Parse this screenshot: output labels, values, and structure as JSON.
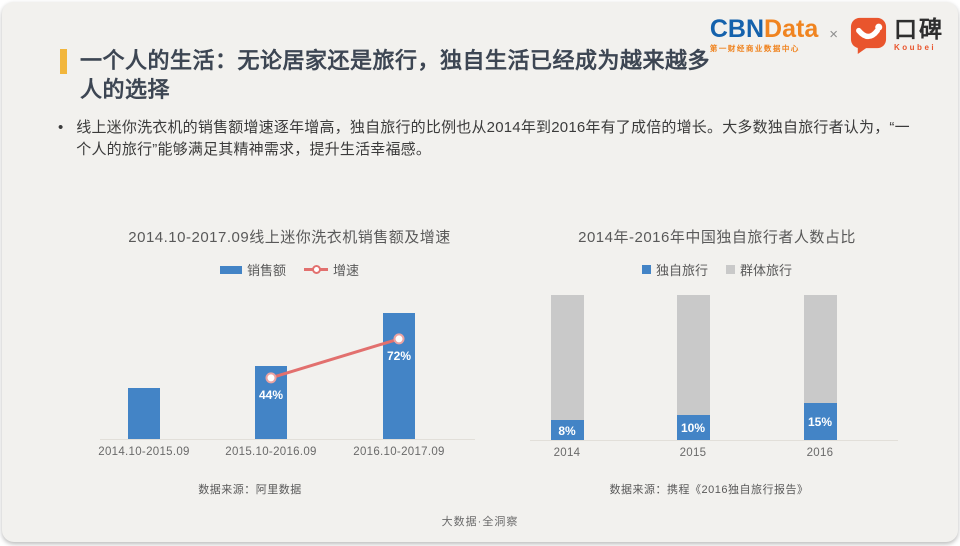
{
  "brand": {
    "cbn": {
      "part1": "CBN",
      "part2": "Data",
      "subtitle": "第一财经商业数据中心"
    },
    "separator": "×",
    "koubei": {
      "cn": "口碑",
      "en": "Koubei"
    }
  },
  "header": {
    "bullet_marker": "•",
    "title_line1": "一个人的生活：无论居家还是旅行，独自生活已经成为越来越多",
    "title_line2": "人的选择",
    "bullet": "线上迷你洗衣机的销售额增速逐年增高，独自旅行的比例也从2014年到2016年有了成倍的增长。大多数独自旅行者认为，“一个人的旅行”能够满足其精神需求，提升生活幸福感。"
  },
  "footer": {
    "tagline": "大数据·全洞察"
  },
  "colors": {
    "slide_bg": "#f2f1ee",
    "accent": "#f2b63c",
    "bar_blue": "#4384c6",
    "bar_gray": "#c9c9c9",
    "line_red": "#e2706e",
    "cbn_blue": "#1562ac",
    "cbn_orange": "#f08420",
    "koubei_orange": "#e9552d"
  },
  "chart_data": [
    {
      "id": "mini-washer-sales",
      "type": "bar+line",
      "title": "2014.10-2017.09线上迷你洗衣机销售额及增速",
      "categories": [
        "2014.10-2015.09",
        "2015.10-2016.09",
        "2016.10-2017.09"
      ],
      "series": [
        {
          "name": "销售额",
          "type": "bar",
          "values": [
            100,
            144,
            248
          ],
          "note": "no value axis shown; relative index estimated from bar heights"
        },
        {
          "name": "增速",
          "type": "line",
          "unit": "%",
          "values": [
            null,
            44,
            72
          ],
          "labels": [
            "",
            "44%",
            "72%"
          ]
        }
      ],
      "legend_position": "top",
      "grid": false,
      "source": "数据来源：阿里数据"
    },
    {
      "id": "solo-traveler-share",
      "type": "stacked-bar",
      "title": "2014年-2016年中国独自旅行者人数占比",
      "categories": [
        "2014",
        "2015",
        "2016"
      ],
      "series": [
        {
          "name": "独自旅行",
          "unit": "%",
          "values": [
            8,
            10,
            15
          ],
          "labels": [
            "8%",
            "10%",
            "15%"
          ]
        },
        {
          "name": "群体旅行",
          "unit": "%",
          "values": [
            92,
            90,
            85
          ],
          "labels": [
            "",
            "",
            ""
          ]
        }
      ],
      "legend_position": "top",
      "grid": false,
      "source": "数据来源：携程《2016独自旅行报告》"
    }
  ]
}
